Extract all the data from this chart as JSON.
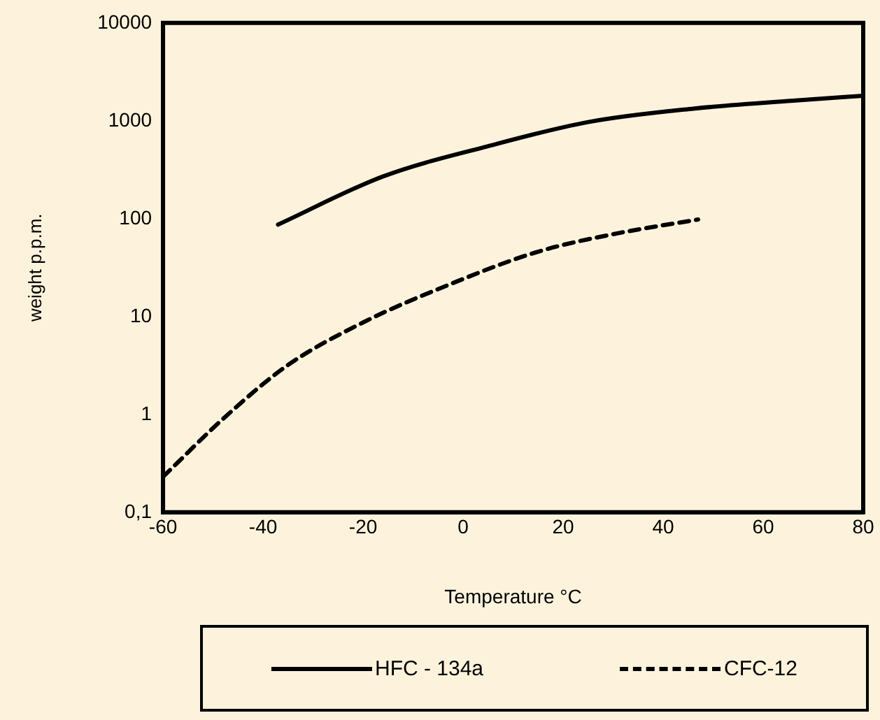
{
  "chart_data": {
    "type": "line",
    "xlabel": "Temperature °C",
    "ylabel": "weight p.p.m.",
    "log": true,
    "grid": false,
    "legend": "bottom",
    "marker": "none",
    "xlim": [
      -60,
      80
    ],
    "xticks": [
      -60,
      -40,
      -20,
      0,
      20,
      40,
      60,
      80
    ],
    "ylim": [
      0.1,
      10000
    ],
    "yticks": [
      {
        "value": 0.1,
        "label": "0,1"
      },
      1,
      10,
      100,
      1000,
      10000
    ],
    "series": [
      {
        "name": "HFC - 134a",
        "color": "#000000",
        "line_style": "solid",
        "x": [
          -37,
          -16,
          5,
          25,
          46,
          67,
          80
        ],
        "values": [
          87,
          270,
          550,
          970,
          1330,
          1620,
          1800
        ]
      },
      {
        "name": "CFC-12",
        "color": "#000000",
        "line_style": "dashed",
        "x": [
          -60,
          -47.5,
          -35,
          -20,
          -4,
          15,
          31,
          47
        ],
        "values": [
          0.23,
          0.95,
          3.2,
          8.7,
          20,
          46,
          71,
          98
        ]
      }
    ]
  }
}
